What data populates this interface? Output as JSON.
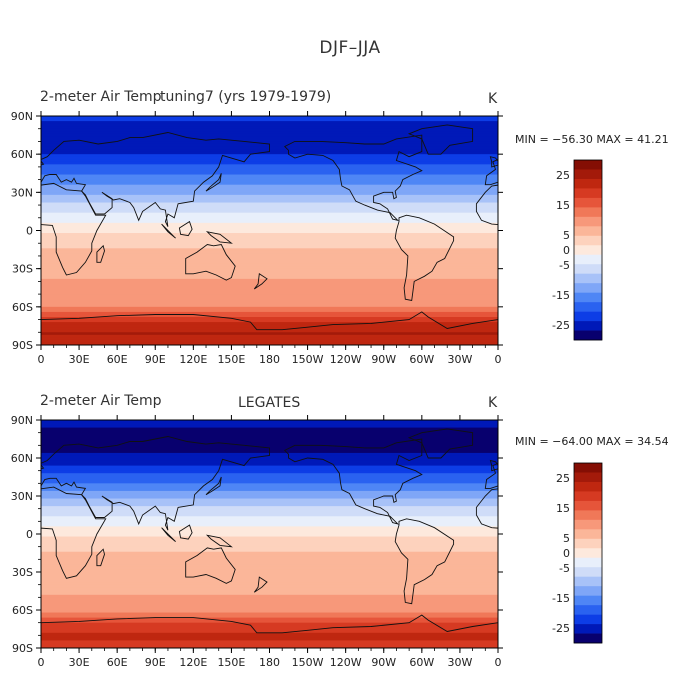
{
  "title": "DJF–JJA",
  "panels": [
    {
      "left_title": "2-meter Air Temp",
      "center_title": "tuning7 (yrs 1979-1979)",
      "units": "K",
      "stats_text": "MIN = −56.30  MAX =  41.21"
    },
    {
      "left_title": "2-meter Air Temp",
      "center_title": "LEGATES",
      "units": "K",
      "stats_text": "MIN = −64.00  MAX =  34.54"
    }
  ],
  "colors": {
    "scale": [
      "#08006e",
      "#0019b8",
      "#0d3de6",
      "#2a62f0",
      "#4f86f5",
      "#7fa6f7",
      "#a8c2f8",
      "#cfdcf8",
      "#e8effb",
      "#fde9dd",
      "#fdd2bd",
      "#fbb699",
      "#f7987a",
      "#f07858",
      "#e6553a",
      "#d63a22",
      "#bf2710",
      "#a31a0a",
      "#840e04"
    ]
  },
  "chart_data": [
    {
      "type": "heatmap",
      "title": "2-meter Air Temp  tuning7 (yrs 1979-1979)",
      "units": "K",
      "min": -56.3,
      "max": 41.21,
      "x_ticks": [
        "0",
        "30E",
        "60E",
        "90E",
        "120E",
        "150E",
        "180",
        "150W",
        "120W",
        "90W",
        "60W",
        "30W",
        "0"
      ],
      "y_ticks": [
        "90N",
        "60N",
        "30N",
        "0",
        "30S",
        "60S",
        "90S"
      ],
      "colorbar_labels": [
        "25",
        "15",
        "5",
        "0",
        "-5",
        "-15",
        "-25"
      ],
      "colorbar_range": [
        -30,
        30
      ],
      "zonal_profile": {
        "lat": [
          90,
          80,
          70,
          60,
          50,
          40,
          30,
          20,
          10,
          0,
          -10,
          -20,
          -30,
          -40,
          -50,
          -60,
          -70,
          -80,
          -90
        ],
        "value": [
          -22,
          -26,
          -26,
          -24,
          -20,
          -16,
          -12,
          -7,
          -3,
          1,
          4,
          6,
          7,
          8,
          8,
          11,
          20,
          24,
          22
        ]
      }
    },
    {
      "type": "heatmap",
      "title": "2-meter Air Temp  LEGATES",
      "units": "K",
      "min": -64.0,
      "max": 34.54,
      "x_ticks": [
        "0",
        "30E",
        "60E",
        "90E",
        "120E",
        "150E",
        "180",
        "150W",
        "120W",
        "90W",
        "60W",
        "30W",
        "0"
      ],
      "y_ticks": [
        "90N",
        "60N",
        "30N",
        "0",
        "30S",
        "60S",
        "90S"
      ],
      "colorbar_labels": [
        "25",
        "15",
        "5",
        "0",
        "-5",
        "-15",
        "-25"
      ],
      "colorbar_range": [
        -30,
        30
      ],
      "zonal_profile": {
        "lat": [
          90,
          80,
          70,
          60,
          50,
          40,
          30,
          20,
          10,
          0,
          -10,
          -20,
          -30,
          -40,
          -50,
          -60,
          -70,
          -80,
          -90
        ],
        "value": [
          -25,
          -28,
          -28,
          -26,
          -22,
          -17,
          -12,
          -7,
          -3,
          1,
          4,
          6,
          7,
          7,
          8,
          10,
          18,
          21,
          20
        ]
      }
    }
  ]
}
